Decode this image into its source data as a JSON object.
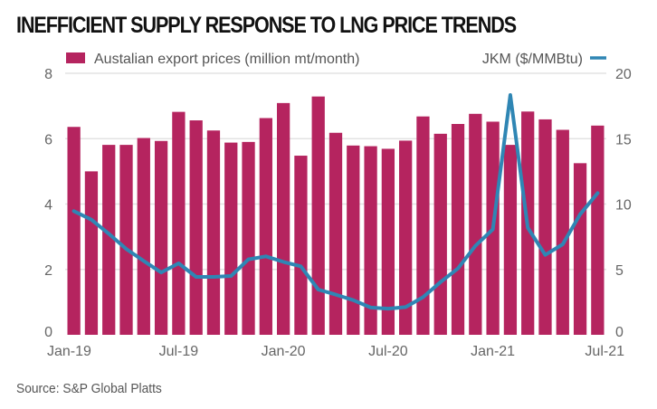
{
  "chart_data": {
    "type": "bar+line",
    "title": "INEFFICIENT SUPPLY RESPONSE TO LNG PRICE TRENDS",
    "source": "Source: S&P Global Platts",
    "categories": [
      "Jan-19",
      "Feb-19",
      "Mar-19",
      "Apr-19",
      "May-19",
      "Jun-19",
      "Jul-19",
      "Aug-19",
      "Sep-19",
      "Oct-19",
      "Nov-19",
      "Dec-19",
      "Jan-20",
      "Feb-20",
      "Mar-20",
      "Apr-20",
      "May-20",
      "Jun-20",
      "Jul-20",
      "Aug-20",
      "Sep-20",
      "Oct-20",
      "Nov-20",
      "Dec-20",
      "Jan-21",
      "Feb-21",
      "Mar-21",
      "Apr-21",
      "May-21",
      "Jun-21",
      "Jul-21"
    ],
    "x_tick_labels": [
      "Jan-19",
      "Jul-19",
      "Jan-20",
      "Jul-20",
      "Jan-21",
      "Jul-21"
    ],
    "x_tick_indices": [
      0,
      6,
      12,
      18,
      24,
      30
    ],
    "series": [
      {
        "name": "Austalian export prices (million mt/month)",
        "type": "bar",
        "axis": "left",
        "color": "#b5245f",
        "values": [
          6.36,
          5.0,
          5.81,
          5.81,
          6.02,
          5.93,
          6.82,
          6.56,
          6.25,
          5.88,
          5.9,
          6.63,
          7.09,
          5.48,
          7.29,
          6.18,
          5.79,
          5.77,
          5.69,
          5.94,
          6.68,
          6.15,
          6.45,
          6.76,
          6.52,
          5.81,
          6.83,
          6.59,
          6.27,
          5.25,
          6.4
        ]
      },
      {
        "name": "JKM ($/MMBtu)",
        "type": "line",
        "axis": "right",
        "color": "#2f86b4",
        "values": [
          9.46,
          8.81,
          7.73,
          6.57,
          5.65,
          4.77,
          5.47,
          4.43,
          4.43,
          4.5,
          5.77,
          6.0,
          5.58,
          5.24,
          3.46,
          3.07,
          2.65,
          2.08,
          2.0,
          2.12,
          2.88,
          4.03,
          5.07,
          6.8,
          8.07,
          18.34,
          8.19,
          6.11,
          6.92,
          9.22,
          10.84
        ]
      }
    ],
    "left_axis": {
      "ylim": [
        0,
        8
      ],
      "ticks": [
        "0",
        "2",
        "4",
        "6",
        "8"
      ]
    },
    "right_axis": {
      "ylim": [
        0,
        20
      ],
      "ticks": [
        "0",
        "5",
        "10",
        "15",
        "20"
      ]
    },
    "grid": true,
    "legend": "top"
  }
}
